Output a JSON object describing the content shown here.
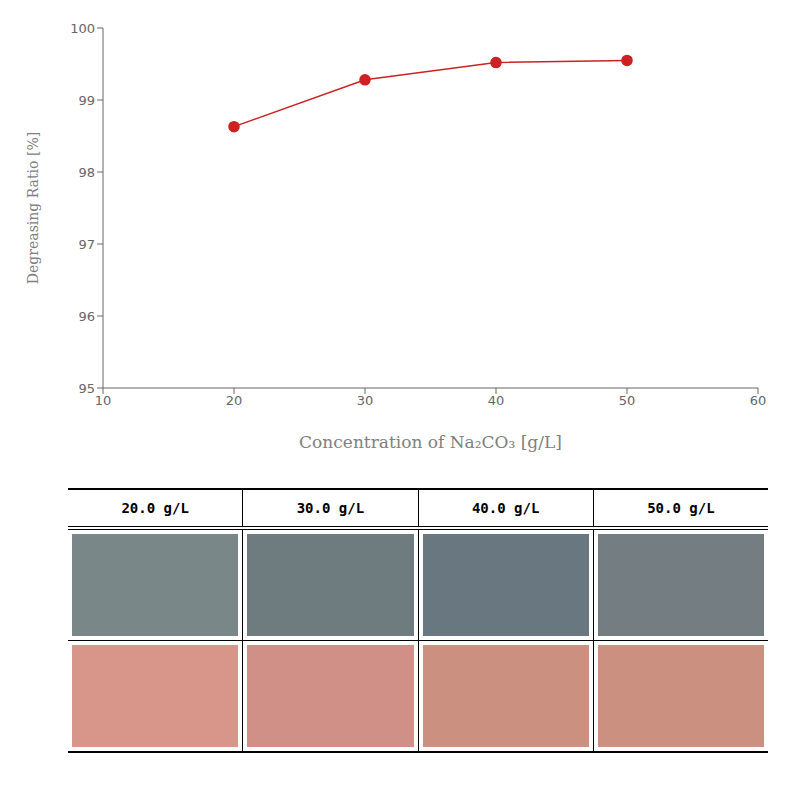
{
  "chart_data": [
    {
      "type": "line",
      "x": [
        20,
        30,
        40,
        50
      ],
      "values": [
        98.63,
        99.28,
        99.52,
        99.55
      ],
      "color": "#cc2222",
      "marker": "circle",
      "xlim": [
        10,
        60
      ],
      "ylim": [
        95,
        100
      ],
      "xticks": [
        10,
        20,
        30,
        40,
        50,
        60
      ],
      "yticks": [
        95,
        96,
        97,
        98,
        99,
        100
      ],
      "xlabel": "Concentration of Na₂CO₃ [g/L]",
      "ylabel": "Degreasing Ratio [%]",
      "grid": false
    },
    {
      "type": "table",
      "categories": [
        "20.0 g/L",
        "30.0 g/L",
        "40.0 g/L",
        "50.0 g/L"
      ],
      "series": [
        {
          "colors": [
            "#7a8788",
            "#6e7c80",
            "#697880",
            "#747e82"
          ]
        },
        {
          "colors": [
            "#d8958a",
            "#d09088",
            "#cc9080",
            "#cc9080"
          ]
        }
      ]
    }
  ]
}
